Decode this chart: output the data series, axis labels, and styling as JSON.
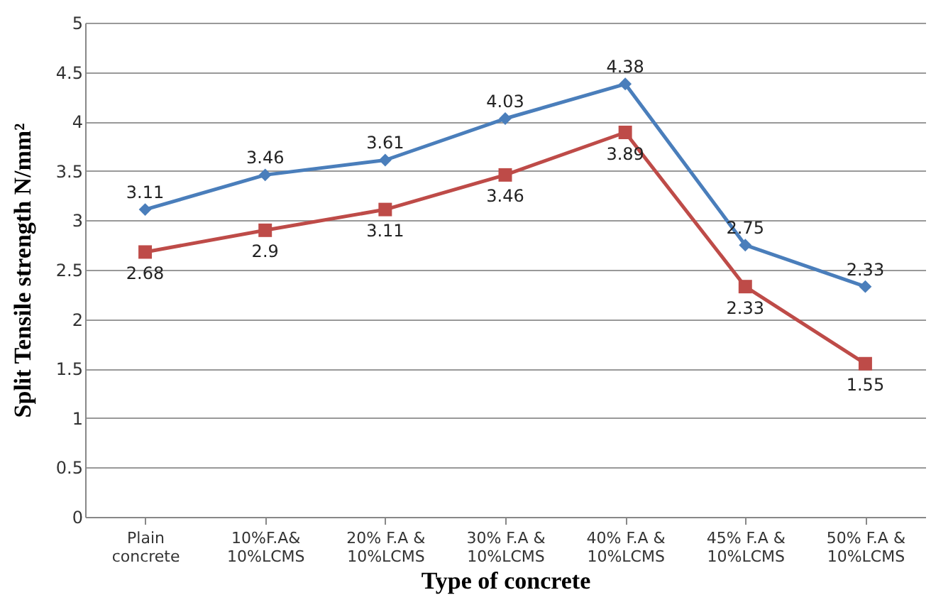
{
  "chart_data": {
    "type": "line",
    "xlabel": "Type of concrete",
    "ylabel": "Split Tensile strength N/mm²",
    "categories": [
      "Plain concrete",
      "10%F.A& 10%LCMS",
      "20% F.A & 10%LCMS",
      "30% F.A & 10%LCMS",
      "40% F.A & 10%LCMS",
      "45% F.A & 10%LCMS",
      "50% F.A & 10%LCMS"
    ],
    "series": [
      {
        "color": "#4a7ebb",
        "marker": "diamond",
        "values": [
          3.11,
          3.46,
          3.61,
          4.03,
          4.38,
          2.75,
          2.33
        ]
      },
      {
        "color": "#be4b48",
        "marker": "square",
        "values": [
          2.68,
          2.9,
          3.11,
          3.46,
          3.89,
          2.33,
          1.55
        ]
      }
    ],
    "ylim": [
      0,
      5
    ],
    "yticks": [
      0,
      0.5,
      1,
      1.5,
      2,
      2.5,
      3,
      3.5,
      4,
      4.5,
      5
    ],
    "grid": "y",
    "data_labels": true
  }
}
